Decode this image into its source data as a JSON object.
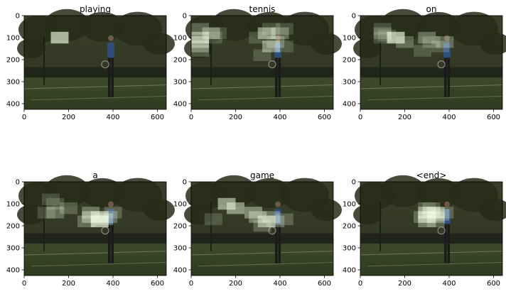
{
  "figure": {
    "panels": [
      {
        "title": "playing",
        "patches": [
          [
            160,
            100,
            0.75
          ]
        ]
      },
      {
        "title": "tennis",
        "patches": [
          [
            40,
            60,
            0.3
          ],
          [
            90,
            80,
            0.4
          ],
          [
            40,
            100,
            0.55
          ],
          [
            40,
            120,
            0.45
          ],
          [
            40,
            140,
            0.35
          ],
          [
            40,
            160,
            0.25
          ],
          [
            120,
            80,
            0.2
          ],
          [
            100,
            100,
            0.2
          ],
          [
            340,
            80,
            0.55
          ],
          [
            360,
            60,
            0.2
          ],
          [
            400,
            80,
            0.35
          ],
          [
            420,
            60,
            0.2
          ],
          [
            380,
            120,
            0.3
          ],
          [
            360,
            140,
            0.5
          ],
          [
            320,
            180,
            0.2
          ],
          [
            300,
            100,
            0.2
          ],
          [
            420,
            140,
            0.2
          ]
        ]
      },
      {
        "title": "on",
        "patches": [
          [
            100,
            60,
            0.2
          ],
          [
            100,
            80,
            0.25
          ],
          [
            100,
            100,
            0.2
          ],
          [
            120,
            90,
            0.2
          ],
          [
            160,
            100,
            0.75
          ],
          [
            200,
            120,
            0.3
          ],
          [
            280,
            160,
            0.2
          ],
          [
            300,
            100,
            0.35
          ],
          [
            320,
            120,
            0.25
          ],
          [
            360,
            140,
            0.2
          ],
          [
            380,
            120,
            0.3
          ]
        ]
      },
      {
        "title": "a",
        "patches": [
          [
            120,
            80,
            0.2
          ],
          [
            140,
            100,
            0.2
          ],
          [
            200,
            120,
            0.25
          ],
          [
            300,
            140,
            0.35
          ],
          [
            300,
            160,
            0.45
          ],
          [
            280,
            180,
            0.3
          ],
          [
            340,
            160,
            0.6
          ],
          [
            340,
            180,
            0.75
          ],
          [
            360,
            170,
            0.35
          ],
          [
            380,
            160,
            0.3
          ],
          [
            400,
            140,
            0.25
          ],
          [
            100,
            140,
            0.2
          ],
          [
            140,
            140,
            0.3
          ]
        ]
      },
      {
        "title": "game",
        "patches": [
          [
            160,
            100,
            0.6
          ],
          [
            200,
            120,
            0.55
          ],
          [
            280,
            140,
            0.45
          ],
          [
            300,
            160,
            0.4
          ],
          [
            340,
            180,
            0.55
          ],
          [
            360,
            160,
            0.35
          ],
          [
            380,
            180,
            0.3
          ],
          [
            100,
            170,
            0.2
          ],
          [
            320,
            200,
            0.25
          ],
          [
            420,
            170,
            0.25
          ]
        ]
      },
      {
        "title": "<end>",
        "patches": [
          [
            300,
            140,
            0.5
          ],
          [
            300,
            160,
            0.45
          ],
          [
            300,
            180,
            0.4
          ],
          [
            320,
            140,
            0.35
          ],
          [
            280,
            160,
            0.3
          ],
          [
            340,
            140,
            0.45
          ],
          [
            340,
            160,
            0.4
          ],
          [
            360,
            150,
            0.3
          ],
          [
            320,
            120,
            0.25
          ],
          [
            300,
            120,
            0.2
          ],
          [
            380,
            140,
            0.25
          ],
          [
            340,
            180,
            0.25
          ]
        ]
      }
    ],
    "axes": {
      "x_ticks": [
        "0",
        "200",
        "400",
        "600"
      ],
      "y_ticks": [
        "0",
        "100",
        "200",
        "300",
        "400"
      ],
      "x_range": [
        0,
        640
      ],
      "y_range": [
        0,
        426
      ]
    }
  }
}
